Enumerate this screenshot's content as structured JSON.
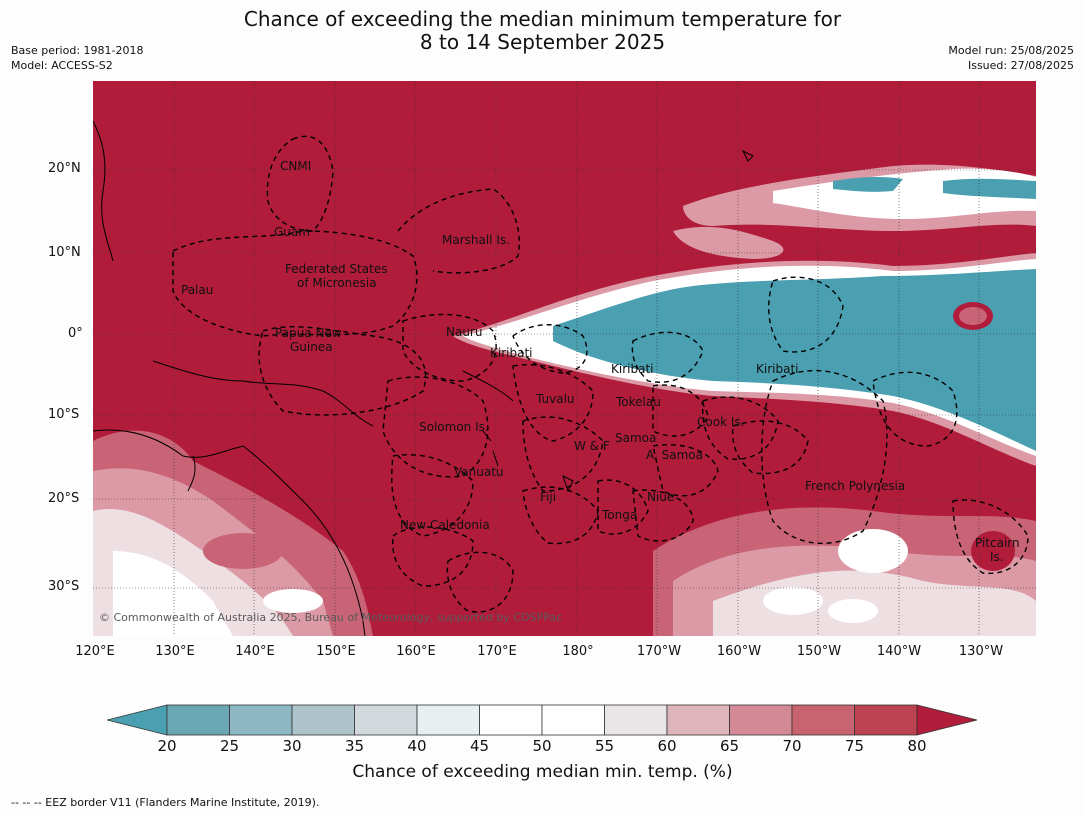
{
  "title": {
    "line1": "Chance of exceeding the median minimum temperature for",
    "line2": "8 to 14 September 2025"
  },
  "meta_left": {
    "base_period": "Base period: 1981-2018",
    "model": "Model: ACCESS-S2"
  },
  "meta_right": {
    "model_run": "Model run: 25/08/2025",
    "issued": "Issued: 27/08/2025"
  },
  "map": {
    "lat_ticks": [
      "20°N",
      "10°N",
      "0°",
      "10°S",
      "20°S",
      "30°S"
    ],
    "lon_ticks": [
      "120°E",
      "130°E",
      "140°E",
      "150°E",
      "160°E",
      "170°E",
      "180°",
      "170°W",
      "160°W",
      "150°W",
      "140°W",
      "130°W"
    ],
    "copyright": "© Commonwealth of Australia 2025, Bureau of Meteorology, supported by COSPPac",
    "regions": {
      "cnmi": "CNMI",
      "guam": "Guam",
      "marshall": "Marshall Is.",
      "fsm_1": "Federated States",
      "fsm_2": "of Micronesia",
      "palau": "Palau",
      "png_1": "Papua New",
      "png_2": "Guinea",
      "nauru": "Nauru",
      "kiribati_w": "Kiribati",
      "kiribati_c": "Kiribati",
      "kiribati_e": "Kiribati",
      "tuvalu": "Tuvalu",
      "tokelau": "Tokelau",
      "cook": "Cook Is.",
      "solomon": "Solomon Is.",
      "samoa": "Samoa",
      "wf": "W & F",
      "asamoa": "A. Samoa",
      "vanuatu": "Vanuatu",
      "fiji": "Fiji",
      "niue": "Niue",
      "tonga": "Tonga",
      "newcal": "New Caledonia",
      "frenchpoly": "French Polynesia",
      "pitcairn_1": "Pitcairn",
      "pitcairn_2": "Is."
    },
    "colors": {
      "high": "#b01c3a",
      "low": "#4a9fb0",
      "neutral": "#ffffff",
      "pink": "#dc9aa6",
      "rose": "#c96376",
      "light": "#eddfe2"
    }
  },
  "colorbar": {
    "title": "Chance of exceeding median min. temp. (%)",
    "labels": [
      "20",
      "25",
      "30",
      "35",
      "40",
      "45",
      "50",
      "55",
      "60",
      "65",
      "70",
      "75",
      "80"
    ],
    "colors": [
      "#4a9fb0",
      "#6ba6b5",
      "#8db8c3",
      "#adc4ca",
      "#d1d9dc",
      "#e7eff0",
      "#ffffff",
      "#ffffff",
      "#eae6e7",
      "#ddb5bb",
      "#d38a96",
      "#c8646f",
      "#bd4252",
      "#b01c3a"
    ]
  },
  "footer": "--  --  -- EEZ border V11 (Flanders Marine Institute, 2019)."
}
